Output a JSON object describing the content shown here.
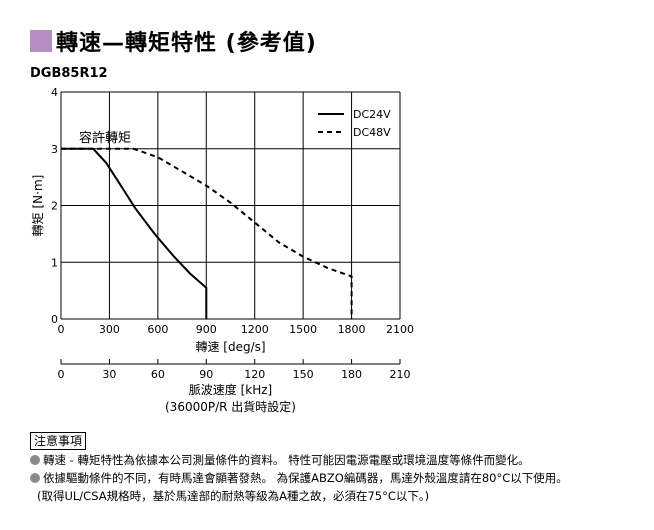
{
  "title": "轉速—轉矩特性 (參考值)",
  "title_accent_color": "#b58cc4",
  "model": "DGB85R12",
  "chart_data": {
    "type": "line",
    "xlabel": "轉速 [deg/s]",
    "ylabel": "轉矩 [N·m]",
    "xlim": [
      0,
      2100
    ],
    "ylim": [
      0,
      4
    ],
    "x_ticks": [
      "0",
      "300",
      "600",
      "900",
      "1200",
      "1500",
      "1800",
      "2100"
    ],
    "y_ticks": [
      "0",
      "1",
      "2",
      "3",
      "4"
    ],
    "grid": true,
    "legend_position": "top-right",
    "annotation": "容許轉矩",
    "series": [
      {
        "name": "DC24V",
        "style": "solid",
        "x": [
          0,
          200,
          280,
          360,
          460,
          580,
          700,
          800,
          900,
          900
        ],
        "y": [
          3.0,
          3.0,
          2.75,
          2.4,
          1.95,
          1.5,
          1.1,
          0.8,
          0.55,
          0
        ]
      },
      {
        "name": "DC48V",
        "style": "dashed",
        "x": [
          0,
          450,
          600,
          750,
          900,
          1050,
          1200,
          1350,
          1500,
          1650,
          1800,
          1800
        ],
        "y": [
          3.0,
          3.0,
          2.85,
          2.6,
          2.35,
          2.05,
          1.7,
          1.35,
          1.1,
          0.9,
          0.75,
          0
        ]
      }
    ],
    "secondary_axis": {
      "label_line1": "脈波速度 [kHz]",
      "label_line2": "(36000P/R 出貨時設定)",
      "ticks": [
        "0",
        "30",
        "60",
        "90",
        "120",
        "150",
        "180",
        "210"
      ]
    }
  },
  "notes": {
    "label": "注意事項",
    "line1": "轉速 - 轉矩特性為依據本公司測量條件的資料。 特性可能因電源電壓或環境溫度等條件而變化。",
    "line2": "依據驅動條件的不同，有時馬達會顯著發熱。 為保護ABZO編碼器，馬達外殼溫度請在80°C以下使用。",
    "line3": "(取得UL/CSA規格時，基於馬達部的耐熱等級為A種之故，必須在75°C以下。)"
  }
}
